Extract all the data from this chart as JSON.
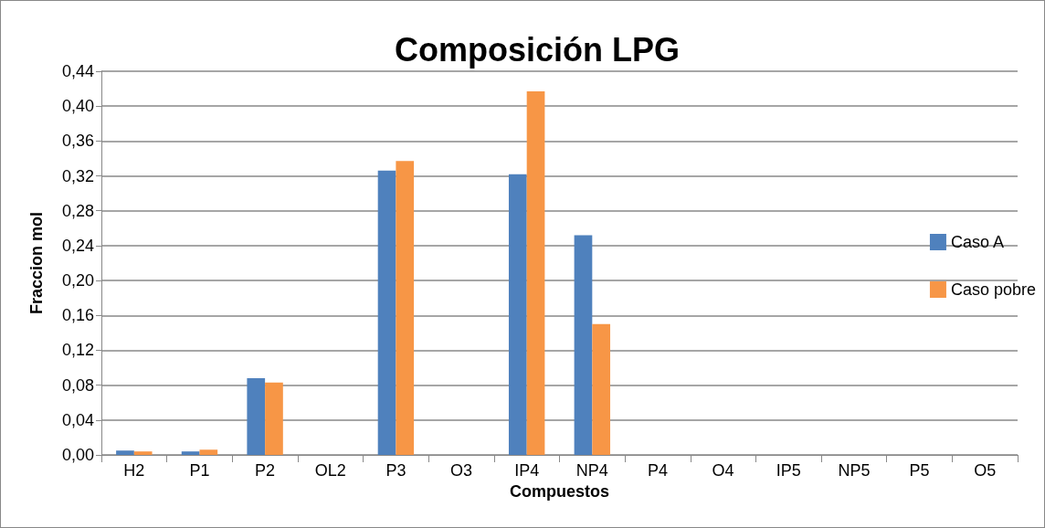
{
  "chart_data": {
    "type": "bar",
    "title": "Composición LPG",
    "xlabel": "Compuestos",
    "ylabel": "Fraccion mol",
    "categories": [
      "H2",
      "P1",
      "P2",
      "OL2",
      "P3",
      "O3",
      "IP4",
      "NP4",
      "P4",
      "O4",
      "IP5",
      "NP5",
      "P5",
      "O5"
    ],
    "series": [
      {
        "name": "Caso A",
        "color": "#4f81bd",
        "values": [
          0.005,
          0.004,
          0.088,
          0,
          0.326,
          0,
          0.322,
          0.252,
          0,
          0,
          0,
          0,
          0,
          0
        ]
      },
      {
        "name": "Caso pobre",
        "color": "#f79646",
        "values": [
          0.004,
          0.006,
          0.083,
          0,
          0.337,
          0,
          0.417,
          0.15,
          0,
          0,
          0,
          0,
          0,
          0
        ]
      }
    ],
    "ylim": [
      0,
      0.44
    ],
    "yticks": [
      {
        "value": 0,
        "label": "0,00"
      },
      {
        "value": 0.04,
        "label": "0,04"
      },
      {
        "value": 0.08,
        "label": "0,08"
      },
      {
        "value": 0.12,
        "label": "0,12"
      },
      {
        "value": 0.16,
        "label": "0,16"
      },
      {
        "value": 0.2,
        "label": "0,20"
      },
      {
        "value": 0.24,
        "label": "0,24"
      },
      {
        "value": 0.28,
        "label": "0,28"
      },
      {
        "value": 0.32,
        "label": "0,32"
      },
      {
        "value": 0.36,
        "label": "0,36"
      },
      {
        "value": 0.4,
        "label": "0,40"
      },
      {
        "value": 0.44,
        "label": "0,44"
      }
    ],
    "grid": "y",
    "legend": "right"
  }
}
